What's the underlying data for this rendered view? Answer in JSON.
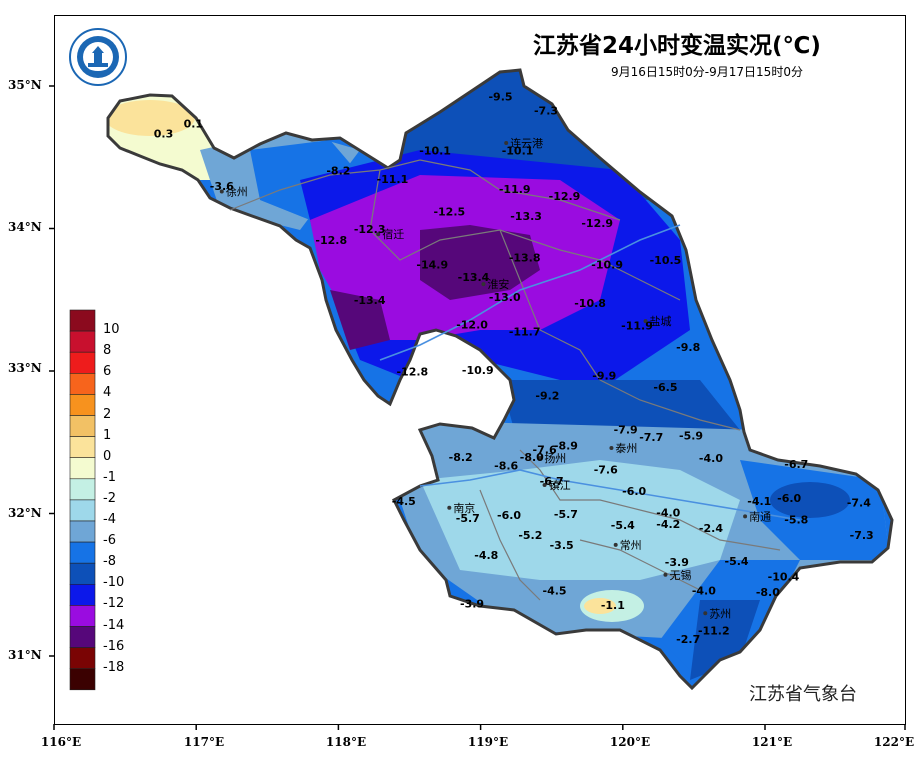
{
  "title": "江苏省24小时变温实况(℃)",
  "subtitle": "9月16日15时0分-9月17日15时0分",
  "credit": "江苏省气象台",
  "logo": {
    "icon": "weather-bureau-logo-icon",
    "text": "江苏省气象台"
  },
  "axes": {
    "lat_ticks": [
      "35°N",
      "34°N",
      "33°N",
      "32°N",
      "31°N"
    ],
    "lon_ticks": [
      "116°E",
      "117°E",
      "118°E",
      "119°E",
      "120°E",
      "121°E",
      "122°E"
    ]
  },
  "legend": {
    "labels": [
      "10",
      "8",
      "6",
      "4",
      "2",
      "1",
      "0",
      "-1",
      "-2",
      "-4",
      "-6",
      "-8",
      "-10",
      "-12",
      "-14",
      "-16",
      "-18"
    ],
    "colors": [
      "#8b0a1e",
      "#c8102e",
      "#ee1c1c",
      "#f7641c",
      "#f7921e",
      "#f2c165",
      "#fbe39b",
      "#f4fbd0",
      "#c4f0e4",
      "#9ed8ea",
      "#6fa6d6",
      "#1673e6",
      "#0d50b8",
      "#0c18ea",
      "#9a0ce0",
      "#56077a",
      "#7a0404",
      "#3b0101"
    ]
  },
  "cities": [
    {
      "name": "徐州",
      "lon": 117.18,
      "lat": 34.26
    },
    {
      "name": "连云港",
      "lon": 119.18,
      "lat": 34.6
    },
    {
      "name": "宿迁",
      "lon": 118.28,
      "lat": 33.96
    },
    {
      "name": "淮安",
      "lon": 119.02,
      "lat": 33.61
    },
    {
      "name": "盐城",
      "lon": 120.16,
      "lat": 33.35
    },
    {
      "name": "扬州",
      "lon": 119.42,
      "lat": 32.39
    },
    {
      "name": "泰州",
      "lon": 119.92,
      "lat": 32.46
    },
    {
      "name": "南京",
      "lon": 118.78,
      "lat": 32.04
    },
    {
      "name": "镇江",
      "lon": 119.45,
      "lat": 32.2
    },
    {
      "name": "南通",
      "lon": 120.86,
      "lat": 31.98
    },
    {
      "name": "常州",
      "lon": 119.95,
      "lat": 31.78
    },
    {
      "name": "无锡",
      "lon": 120.3,
      "lat": 31.57
    },
    {
      "name": "苏州",
      "lon": 120.58,
      "lat": 31.3
    }
  ],
  "station_values": [
    {
      "v": "0.3",
      "lon": 116.77,
      "lat": 34.64
    },
    {
      "v": "0.1",
      "lon": 116.98,
      "lat": 34.71
    },
    {
      "v": "-3.6",
      "lon": 117.18,
      "lat": 34.27
    },
    {
      "v": "-9.5",
      "lon": 119.14,
      "lat": 34.9
    },
    {
      "v": "-7.3",
      "lon": 119.46,
      "lat": 34.8
    },
    {
      "v": "-10.1",
      "lon": 118.68,
      "lat": 34.52
    },
    {
      "v": "-10.1",
      "lon": 119.26,
      "lat": 34.52
    },
    {
      "v": "-8.2",
      "lon": 118.0,
      "lat": 34.38
    },
    {
      "v": "-11.1",
      "lon": 118.38,
      "lat": 34.32
    },
    {
      "v": "-11.9",
      "lon": 119.24,
      "lat": 34.25
    },
    {
      "v": "-12.9",
      "lon": 119.59,
      "lat": 34.2
    },
    {
      "v": "-12.5",
      "lon": 118.78,
      "lat": 34.09
    },
    {
      "v": "-13.3",
      "lon": 119.32,
      "lat": 34.06
    },
    {
      "v": "-12.9",
      "lon": 119.82,
      "lat": 34.01
    },
    {
      "v": "-12.3",
      "lon": 118.22,
      "lat": 33.97
    },
    {
      "v": "-12.8",
      "lon": 117.95,
      "lat": 33.89
    },
    {
      "v": "-14.9",
      "lon": 118.66,
      "lat": 33.72
    },
    {
      "v": "-13.4",
      "lon": 118.95,
      "lat": 33.63
    },
    {
      "v": "-13.8",
      "lon": 119.31,
      "lat": 33.77
    },
    {
      "v": "-10.9",
      "lon": 119.89,
      "lat": 33.72
    },
    {
      "v": "-10.5",
      "lon": 120.3,
      "lat": 33.75
    },
    {
      "v": "-13.4",
      "lon": 118.22,
      "lat": 33.47
    },
    {
      "v": "-13.0",
      "lon": 119.17,
      "lat": 33.49
    },
    {
      "v": "-10.8",
      "lon": 119.77,
      "lat": 33.45
    },
    {
      "v": "-12.0",
      "lon": 118.94,
      "lat": 33.3
    },
    {
      "v": "-11.7",
      "lon": 119.31,
      "lat": 33.25
    },
    {
      "v": "-11.9",
      "lon": 120.1,
      "lat": 33.29
    },
    {
      "v": "-9.8",
      "lon": 120.46,
      "lat": 33.14
    },
    {
      "v": "-12.8",
      "lon": 118.52,
      "lat": 32.97
    },
    {
      "v": "-10.9",
      "lon": 118.98,
      "lat": 32.98
    },
    {
      "v": "-9.9",
      "lon": 119.87,
      "lat": 32.94
    },
    {
      "v": "-6.5",
      "lon": 120.3,
      "lat": 32.86
    },
    {
      "v": "-9.2",
      "lon": 119.47,
      "lat": 32.8
    },
    {
      "v": "-7.9",
      "lon": 120.02,
      "lat": 32.56
    },
    {
      "v": "-7.7",
      "lon": 120.2,
      "lat": 32.51
    },
    {
      "v": "-5.9",
      "lon": 120.48,
      "lat": 32.52
    },
    {
      "v": "-8.9",
      "lon": 119.6,
      "lat": 32.45
    },
    {
      "v": "-7.6",
      "lon": 119.45,
      "lat": 32.42
    },
    {
      "v": "-8.2",
      "lon": 118.86,
      "lat": 32.37
    },
    {
      "v": "-8.0",
      "lon": 119.36,
      "lat": 32.37
    },
    {
      "v": "-8.6",
      "lon": 119.18,
      "lat": 32.31
    },
    {
      "v": "-4.0",
      "lon": 120.62,
      "lat": 32.36
    },
    {
      "v": "-6.7",
      "lon": 121.22,
      "lat": 32.32
    },
    {
      "v": "-7.6",
      "lon": 119.88,
      "lat": 32.28
    },
    {
      "v": "-6.7",
      "lon": 119.5,
      "lat": 32.2
    },
    {
      "v": "-6.0",
      "lon": 120.08,
      "lat": 32.13
    },
    {
      "v": "-4.5",
      "lon": 118.46,
      "lat": 32.06
    },
    {
      "v": "-4.1",
      "lon": 120.96,
      "lat": 32.06
    },
    {
      "v": "-6.0",
      "lon": 121.17,
      "lat": 32.08
    },
    {
      "v": "-7.4",
      "lon": 121.66,
      "lat": 32.05
    },
    {
      "v": "-5.7",
      "lon": 118.91,
      "lat": 31.94
    },
    {
      "v": "-6.0",
      "lon": 119.2,
      "lat": 31.96
    },
    {
      "v": "-5.7",
      "lon": 119.6,
      "lat": 31.97
    },
    {
      "v": "-4.0",
      "lon": 120.32,
      "lat": 31.98
    },
    {
      "v": "-5.8",
      "lon": 121.22,
      "lat": 31.93
    },
    {
      "v": "-5.4",
      "lon": 120.0,
      "lat": 31.89
    },
    {
      "v": "-4.2",
      "lon": 120.32,
      "lat": 31.9
    },
    {
      "v": "-2.4",
      "lon": 120.62,
      "lat": 31.87
    },
    {
      "v": "-7.3",
      "lon": 121.68,
      "lat": 31.82
    },
    {
      "v": "-5.2",
      "lon": 119.35,
      "lat": 31.82
    },
    {
      "v": "-3.5",
      "lon": 119.57,
      "lat": 31.75
    },
    {
      "v": "-4.8",
      "lon": 119.04,
      "lat": 31.68
    },
    {
      "v": "-3.9",
      "lon": 120.38,
      "lat": 31.63
    },
    {
      "v": "-5.4",
      "lon": 120.8,
      "lat": 31.64
    },
    {
      "v": "-10.4",
      "lon": 121.13,
      "lat": 31.53
    },
    {
      "v": "-4.5",
      "lon": 119.52,
      "lat": 31.43
    },
    {
      "v": "-4.0",
      "lon": 120.57,
      "lat": 31.43
    },
    {
      "v": "-8.0",
      "lon": 121.02,
      "lat": 31.42
    },
    {
      "v": "-3.9",
      "lon": 118.94,
      "lat": 31.34
    },
    {
      "v": "-1.1",
      "lon": 119.93,
      "lat": 31.33
    },
    {
      "v": "-11.2",
      "lon": 120.64,
      "lat": 31.15
    },
    {
      "v": "-2.7",
      "lon": 120.46,
      "lat": 31.09
    }
  ]
}
